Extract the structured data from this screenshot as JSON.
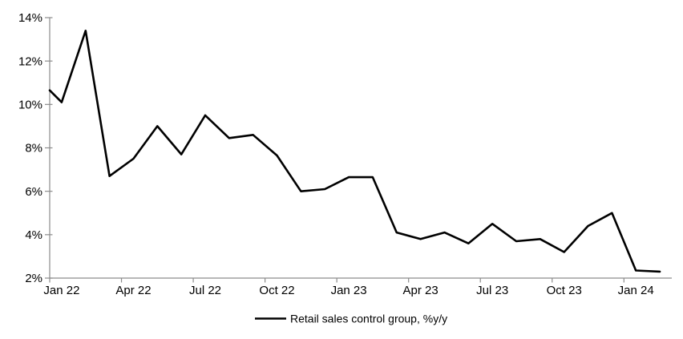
{
  "chart_data": {
    "type": "line",
    "title": "",
    "categories": [
      "Jan 22",
      "Feb 22",
      "Mar 22",
      "Apr 22",
      "May 22",
      "Jun 22",
      "Jul 22",
      "Aug 22",
      "Sep 22",
      "Oct 22",
      "Nov 22",
      "Dec 22",
      "Jan 23",
      "Feb 23",
      "Mar 23",
      "Apr 23",
      "May 23",
      "Jun 23",
      "Jul 23",
      "Aug 23",
      "Sep 23",
      "Oct 23",
      "Nov 23",
      "Dec 23",
      "Jan 24",
      "Feb 24"
    ],
    "series": [
      {
        "name": "Retail sales control group, %y/y",
        "color": "#000000",
        "values": [
          10.1,
          13.4,
          6.7,
          7.5,
          9.0,
          7.7,
          9.5,
          8.45,
          8.6,
          7.65,
          6.0,
          6.1,
          6.65,
          6.65,
          4.1,
          3.8,
          4.1,
          3.6,
          4.5,
          3.7,
          3.8,
          3.2,
          4.4,
          5.0,
          2.35,
          2.3
        ]
      }
    ],
    "leading_edge_value": 10.65,
    "xlabel": "",
    "ylabel": "",
    "ylim": [
      2,
      14
    ],
    "y_tick_step": 2,
    "y_tick_labels": [
      "2%",
      "4%",
      "6%",
      "8%",
      "10%",
      "12%",
      "14%"
    ],
    "x_tick_labels": [
      "Jan 22",
      "Apr 22",
      "Jul 22",
      "Oct 22",
      "Jan 23",
      "Apr 23",
      "Jul 23",
      "Oct 23",
      "Jan 24"
    ],
    "x_tick_interval": 3,
    "gridlines": false,
    "legend_position": "bottom-center",
    "axis_color": "#8c8c8c",
    "text_color": "#000000",
    "background_color": "#ffffff"
  },
  "legend": {
    "label": "Retail sales control group, %y/y"
  }
}
